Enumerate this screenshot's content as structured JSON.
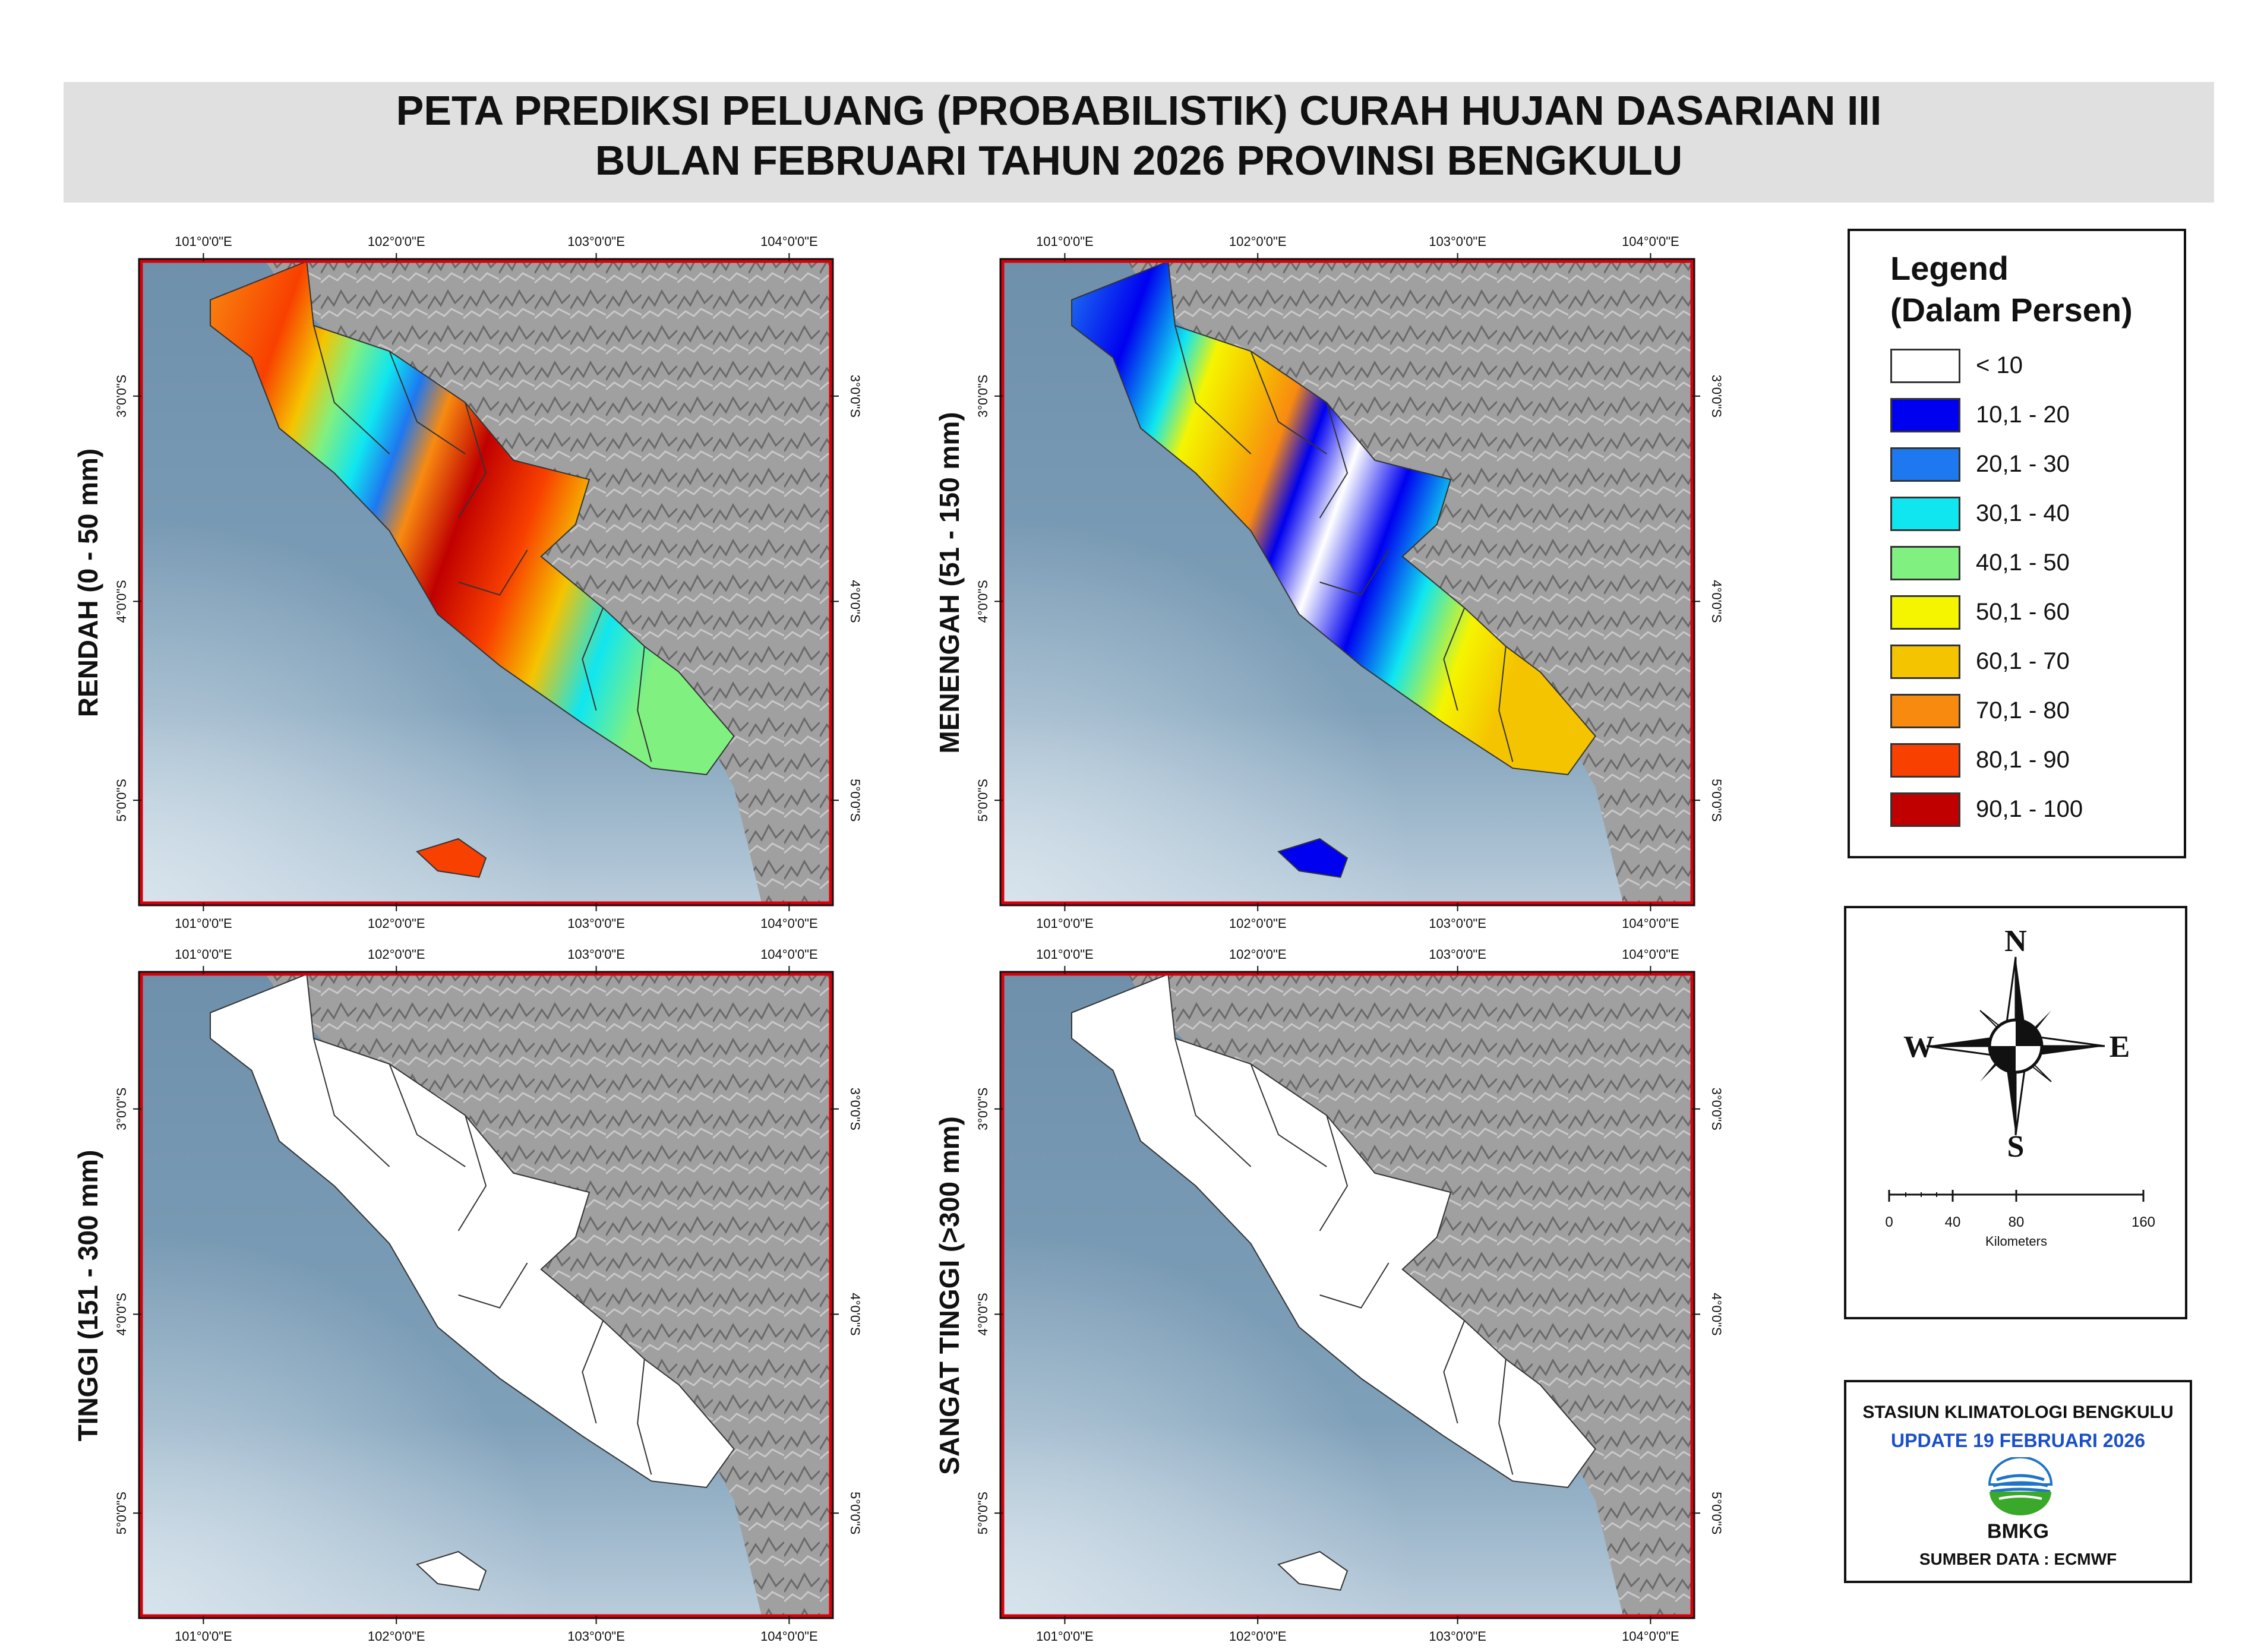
{
  "title": {
    "line1": "PETA PREDIKSI PELUANG (PROBABILISTIK) CURAH HUJAN DASARIAN III",
    "line2": "BULAN FEBRUARI TAHUN 2026 PROVINSI BENGKULU"
  },
  "axis_ticks": {
    "lon": [
      "101°0'0\"E",
      "102°0'0\"E",
      "103°0'0\"E",
      "104°0'0\"E"
    ],
    "lat": [
      "3°0'0\"S",
      "4°0'0\"S",
      "5°0'0\"S"
    ]
  },
  "panels": [
    {
      "label": "RENDAH (0 -  50 mm)",
      "fill": "rendah"
    },
    {
      "label": "MENENGAH (51 -  150 mm)",
      "fill": "menengah"
    },
    {
      "label": "TINGGI (151 -  300 mm)",
      "fill": "white"
    },
    {
      "label": "SANGAT TINGGI  (>300  mm)",
      "fill": "white"
    }
  ],
  "legend": {
    "title1": "Legend",
    "title2": "(Dalam Persen)",
    "items": [
      {
        "label": "< 10",
        "color": "#ffffff"
      },
      {
        "label": "10,1 - 20",
        "color": "#0000f0"
      },
      {
        "label": "20,1 - 30",
        "color": "#1e78f0"
      },
      {
        "label": "30,1 - 40",
        "color": "#10e6f0"
      },
      {
        "label": "40,1 - 50",
        "color": "#80f080"
      },
      {
        "label": "50,1 - 60",
        "color": "#f5f500"
      },
      {
        "label": "60,1 - 70",
        "color": "#f5c400"
      },
      {
        "label": "70,1 - 80",
        "color": "#f88a10"
      },
      {
        "label": "80,1 - 90",
        "color": "#f84000"
      },
      {
        "label": "90,1 - 100",
        "color": "#c00000"
      }
    ]
  },
  "compass": {
    "n": "N",
    "s": "S",
    "e": "E",
    "w": "W"
  },
  "scale_bar": {
    "ticks": [
      "0",
      "40",
      "80",
      "160"
    ],
    "unit": "Kilometers"
  },
  "credits": {
    "station": "STASIUN KLIMATOLOGI BENGKULU",
    "update": "UPDATE 19 FEBRUARI 2026",
    "logo_text": "BMKG",
    "source": "SUMBER DATA : ECMWF"
  },
  "colors": {
    "sea": "#7e9cb4",
    "land": "#9c9c9c",
    "frame": "#d8000a",
    "update_text": "#1a4fc8"
  }
}
